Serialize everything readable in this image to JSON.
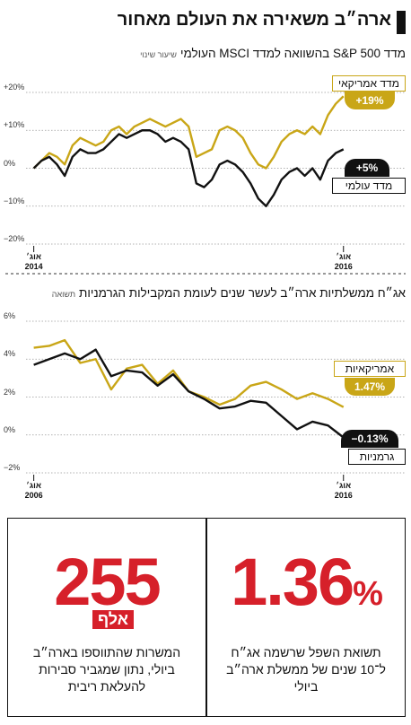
{
  "title": "ארה״ב משאירה את העולם מאחור",
  "chart_data": [
    {
      "type": "line",
      "title": "מדד S&P 500 בהשוואה למדד MSCI העולמי",
      "unit": "שיעור שינוי",
      "x": [
        2014.6,
        2014.65,
        2014.7,
        2014.75,
        2014.8,
        2014.85,
        2014.9,
        2014.95,
        2015,
        2015.05,
        2015.1,
        2015.15,
        2015.2,
        2015.25,
        2015.3,
        2015.35,
        2015.4,
        2015.45,
        2015.5,
        2015.55,
        2015.6,
        2015.65,
        2015.7,
        2015.75,
        2015.8,
        2015.85,
        2015.9,
        2015.95,
        2016,
        2016.05,
        2016.1,
        2016.15,
        2016.2,
        2016.25,
        2016.3,
        2016.35,
        2016.4,
        2016.45,
        2016.5,
        2016.55,
        2016.6
      ],
      "series": [
        {
          "name": "מדד אמריקאי",
          "color": "#c9a617",
          "end_label": "+19%",
          "values": [
            0,
            2,
            4,
            3,
            1,
            6,
            8,
            7,
            6,
            7,
            10,
            11,
            9,
            11,
            12,
            13,
            12,
            11,
            12,
            13,
            11,
            3,
            4,
            5,
            10,
            11,
            10,
            8,
            4,
            1,
            0,
            3,
            7,
            9,
            10,
            9,
            11,
            9,
            14,
            17,
            19
          ]
        },
        {
          "name": "מדד עולמי",
          "color": "#111111",
          "end_label": "+5%",
          "values": [
            0,
            2,
            3,
            1,
            -2,
            3,
            5,
            4,
            4,
            5,
            7,
            9,
            8,
            9,
            10,
            10,
            9,
            7,
            8,
            7,
            5,
            -4,
            -5,
            -3,
            1,
            2,
            1,
            -1,
            -4,
            -8,
            -10,
            -7,
            -3,
            -1,
            0,
            -2,
            0,
            -3,
            2,
            4,
            5
          ]
        }
      ],
      "xlim": [
        2014.55,
        2016.7
      ],
      "xticks": [
        {
          "value": 2014.6,
          "label": "אוג׳\n2014"
        },
        {
          "value": 2016.6,
          "label": "אוג׳\n2016"
        }
      ],
      "ylim": [
        -20,
        20
      ],
      "yticks": [
        {
          "value": 20,
          "label": "+20%"
        },
        {
          "value": 10,
          "label": "+10%"
        },
        {
          "value": 0,
          "label": "0%"
        },
        {
          "value": -10,
          "label": "−10%"
        },
        {
          "value": -20,
          "label": "−20%"
        }
      ],
      "grid": true
    },
    {
      "type": "line",
      "title": "אג״ח ממשלתיות ארה״ב לעשר שנים לעומת המקבילות הגרמניות",
      "unit": "תשואה",
      "x": [
        2006.6,
        2007.1,
        2007.6,
        2008.1,
        2008.6,
        2009.1,
        2009.6,
        2010.1,
        2010.6,
        2011.1,
        2011.6,
        2012.1,
        2012.6,
        2013.1,
        2013.6,
        2014.1,
        2014.6,
        2015.1,
        2015.6,
        2016.1,
        2016.6
      ],
      "series": [
        {
          "name": "אמריקאיות",
          "color": "#c9a617",
          "end_label": "1.47%",
          "values": [
            4.6,
            4.7,
            5.0,
            3.8,
            4.0,
            2.4,
            3.5,
            3.7,
            2.7,
            3.4,
            2.3,
            2.0,
            1.6,
            1.9,
            2.6,
            2.8,
            2.4,
            1.9,
            2.2,
            1.9,
            1.47
          ]
        },
        {
          "name": "גרמניות",
          "color": "#111111",
          "end_label": "−0.13%",
          "values": [
            3.7,
            4.0,
            4.3,
            4.0,
            4.5,
            3.1,
            3.4,
            3.3,
            2.6,
            3.2,
            2.3,
            1.9,
            1.4,
            1.5,
            1.8,
            1.7,
            1.0,
            0.3,
            0.7,
            0.5,
            -0.13
          ]
        }
      ],
      "xlim": [
        2006.35,
        2017.1
      ],
      "xticks": [
        {
          "value": 2006.6,
          "label": "אוג׳\n2006"
        },
        {
          "value": 2016.6,
          "label": "אוג׳\n2016"
        }
      ],
      "ylim": [
        -2,
        6
      ],
      "yticks": [
        {
          "value": 6,
          "label": "6%"
        },
        {
          "value": 4,
          "label": "4%"
        },
        {
          "value": 2,
          "label": "2%"
        },
        {
          "value": 0,
          "label": "0%"
        },
        {
          "value": -2,
          "label": "−2%"
        }
      ],
      "grid": true
    }
  ],
  "stats": [
    {
      "number": "255",
      "unit": "אלף",
      "caption": "המשרות שהתווספו בארה״ב ביולי, נתון שמגביר סבירות להעלאת ריבית"
    },
    {
      "number": "1.36",
      "unit": "%",
      "caption": "תשואת השפל שרשמה אג״ח ל־10 שנים של ממשלת ארה״ב ביולי"
    }
  ]
}
